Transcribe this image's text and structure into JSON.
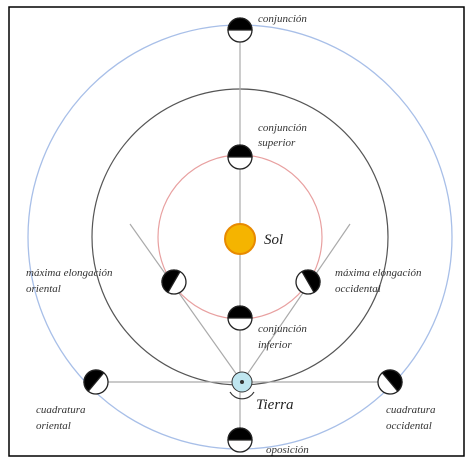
{
  "labels": {
    "conjuncion": "conjunción",
    "conjuncion_superior": [
      "conjunción",
      "superior"
    ],
    "sol": "Sol",
    "maxima_oriental": [
      "máxima elongación",
      "oriental"
    ],
    "maxima_occidental": [
      "máxima elongación",
      "occidental"
    ],
    "conjuncion_inferior": [
      "conjunción",
      "inferior"
    ],
    "tierra": "Tierra",
    "cuadratura_oriental": [
      "cuadratura",
      "oriental"
    ],
    "cuadratura_occidental": [
      "cuadratura",
      "occidental"
    ],
    "oposicion": "oposición"
  }
}
